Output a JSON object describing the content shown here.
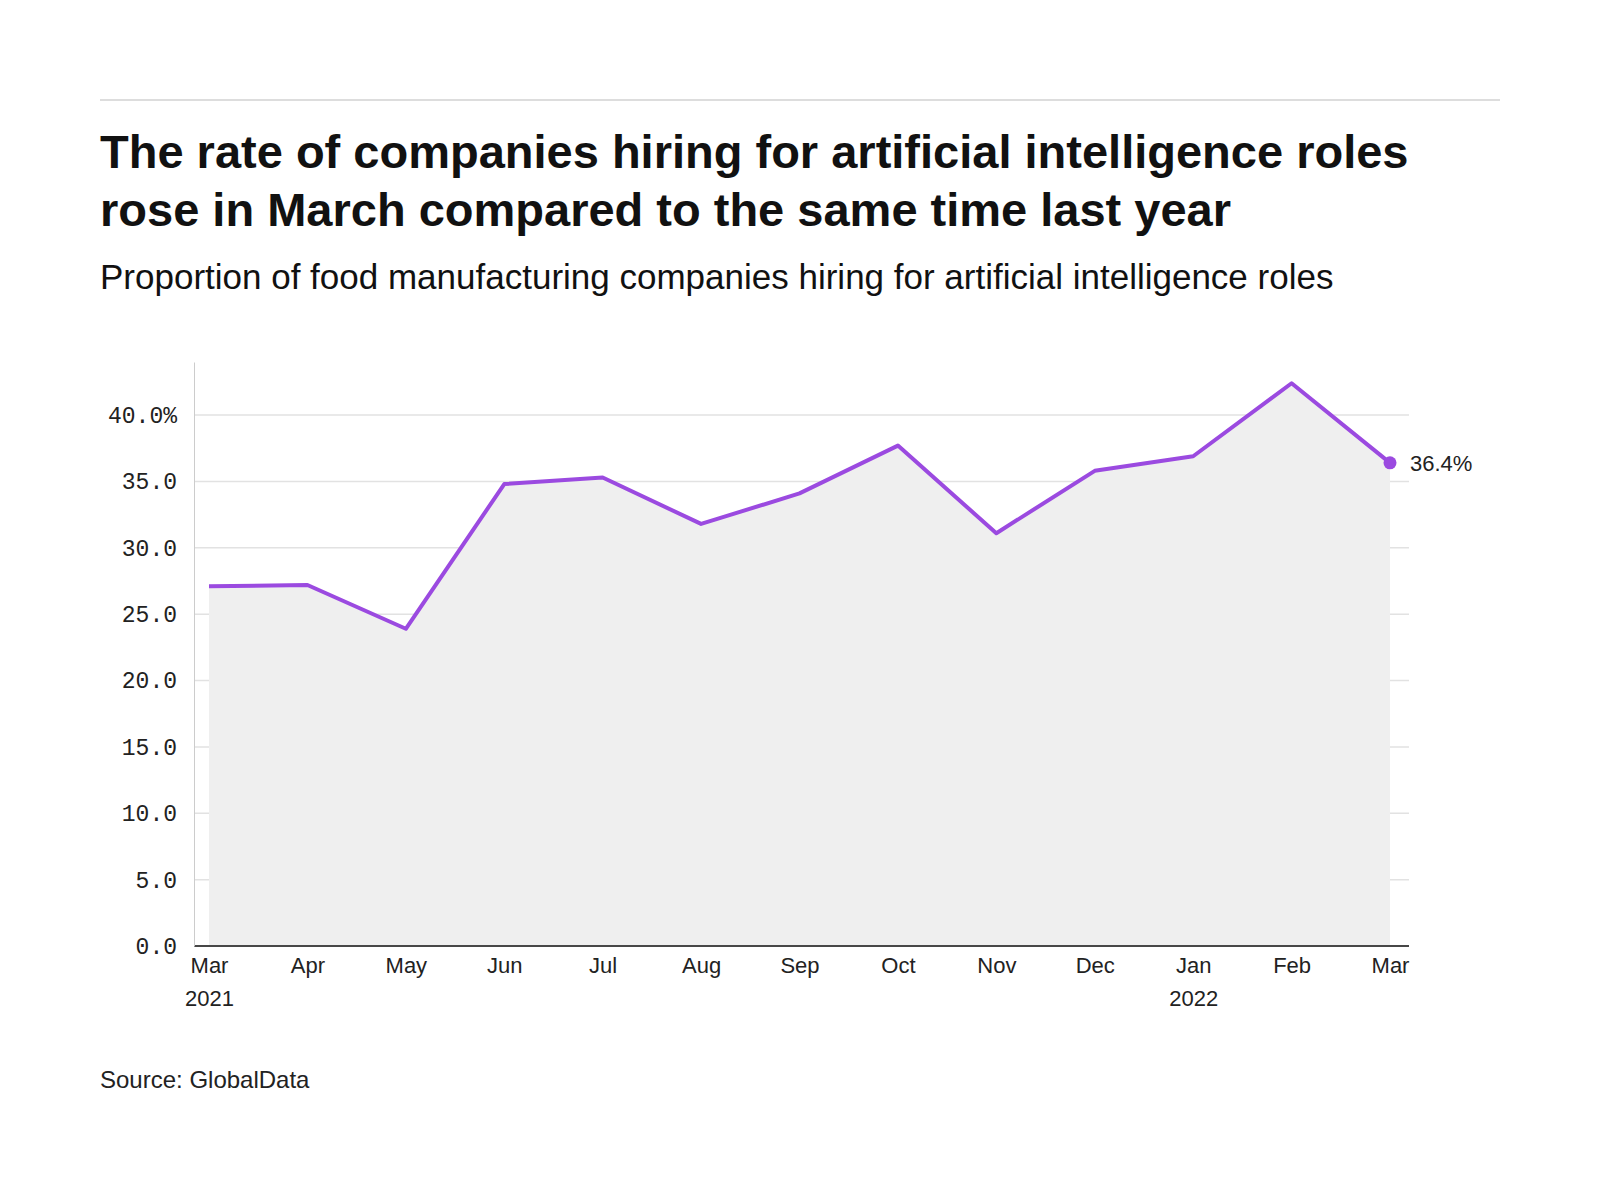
{
  "chart_data": {
    "type": "area",
    "title": "The rate of companies hiring for artificial intelligence roles rose in March compared to the same time last year",
    "subtitle": "Proportion of food manufacturing companies hiring for artificial intelligence roles",
    "source": "Source: GlobalData",
    "categories": [
      "Mar 2021",
      "Apr",
      "May",
      "Jun",
      "Jul",
      "Aug",
      "Sep",
      "Oct",
      "Nov",
      "Dec",
      "Jan 2022",
      "Feb",
      "Mar"
    ],
    "values": [
      27.1,
      27.2,
      23.9,
      34.8,
      35.3,
      31.8,
      34.1,
      37.7,
      31.1,
      35.8,
      36.9,
      42.4,
      36.4
    ],
    "value_labels": [
      null,
      null,
      null,
      null,
      null,
      null,
      null,
      null,
      null,
      null,
      null,
      null,
      "36.4%"
    ],
    "data_labels": true,
    "color": "#9b4ae0",
    "ylim": [
      0,
      44
    ],
    "yticks": [
      {
        "value": 0,
        "label": "0.0"
      },
      {
        "value": 5,
        "label": "5.0"
      },
      {
        "value": 10,
        "label": "10.0"
      },
      {
        "value": 15,
        "label": "15.0"
      },
      {
        "value": 20,
        "label": "20.0"
      },
      {
        "value": 25,
        "label": "25.0"
      },
      {
        "value": 30,
        "label": "30.0"
      },
      {
        "value": 35,
        "label": "35.0"
      },
      {
        "value": 40,
        "label": "40.0%"
      }
    ],
    "grid": true
  }
}
